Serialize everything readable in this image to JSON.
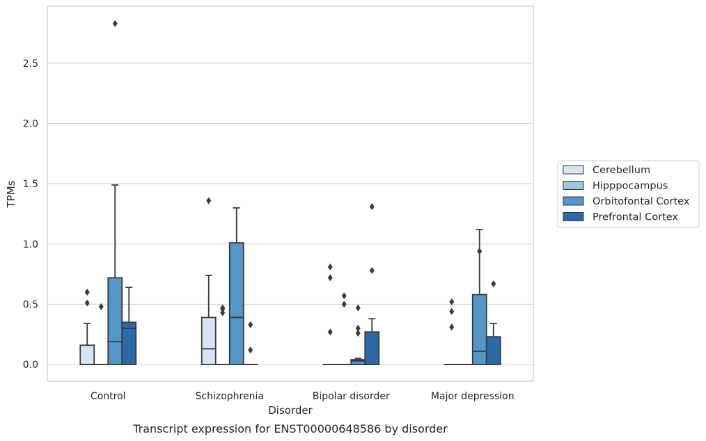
{
  "chart_data": {
    "type": "box",
    "caption": "Transcript expression for ENST00000648586 by disorder",
    "xlabel": "Disorder",
    "ylabel": "TPMs",
    "ylim": [
      -0.14,
      2.98
    ],
    "yticks": [
      "0.0",
      "0.5",
      "1.0",
      "1.5",
      "2.0",
      "2.5"
    ],
    "grid": "horizontal",
    "legend_placement": "right",
    "categories": [
      "Control",
      "Schizophrenia",
      "Bipolar disorder",
      "Major depression"
    ],
    "series": [
      {
        "name": "Cerebellum",
        "color": "#d5e3f2",
        "boxes": [
          {
            "q1": 0.0,
            "median": 0.0,
            "q3": 0.16,
            "whislo": 0.0,
            "whishi": 0.34,
            "fliers": [
              0.51,
              0.6
            ]
          },
          {
            "q1": 0.0,
            "median": 0.13,
            "q3": 0.39,
            "whislo": 0.0,
            "whishi": 0.74,
            "fliers": [
              1.36
            ]
          },
          {
            "q1": 0.0,
            "median": 0.0,
            "q3": 0.0,
            "whislo": 0.0,
            "whishi": 0.0,
            "fliers": [
              0.27,
              0.72,
              0.81
            ]
          },
          {
            "q1": 0.0,
            "median": 0.0,
            "q3": 0.0,
            "whislo": 0.0,
            "whishi": 0.0,
            "fliers": [
              0.31,
              0.44,
              0.52
            ]
          }
        ]
      },
      {
        "name": "Hipppocampus",
        "color": "#9ac7e0",
        "boxes": [
          {
            "q1": 0.0,
            "median": 0.0,
            "q3": 0.0,
            "whislo": 0.0,
            "whishi": 0.0,
            "fliers": [
              0.48
            ]
          },
          {
            "q1": 0.0,
            "median": 0.0,
            "q3": 0.0,
            "whislo": 0.0,
            "whishi": 0.0,
            "fliers": [
              0.43,
              0.46,
              0.47
            ]
          },
          {
            "q1": 0.0,
            "median": 0.0,
            "q3": 0.0,
            "whislo": 0.0,
            "whishi": 0.0,
            "fliers": [
              0.5,
              0.57
            ]
          },
          {
            "q1": 0.0,
            "median": 0.0,
            "q3": 0.0,
            "whislo": 0.0,
            "whishi": 0.0,
            "fliers": []
          }
        ]
      },
      {
        "name": "Orbitofontal Cortex",
        "color": "#5497c6",
        "boxes": [
          {
            "q1": 0.0,
            "median": 0.19,
            "q3": 0.72,
            "whislo": 0.0,
            "whishi": 1.49,
            "fliers": [
              2.83
            ]
          },
          {
            "q1": 0.0,
            "median": 0.39,
            "q3": 1.01,
            "whislo": 0.0,
            "whishi": 1.3,
            "fliers": []
          },
          {
            "q1": 0.0,
            "median": 0.03,
            "q3": 0.04,
            "whislo": 0.0,
            "whishi": 0.05,
            "fliers": [
              0.26,
              0.3,
              0.47
            ]
          },
          {
            "q1": 0.0,
            "median": 0.11,
            "q3": 0.58,
            "whislo": 0.0,
            "whishi": 1.12,
            "fliers": [
              0.94
            ]
          }
        ]
      },
      {
        "name": "Prefrontal Cortex",
        "color": "#2a6aa8",
        "boxes": [
          {
            "q1": 0.0,
            "median": 0.3,
            "q3": 0.35,
            "whislo": 0.0,
            "whishi": 0.64,
            "fliers": []
          },
          {
            "q1": 0.0,
            "median": 0.0,
            "q3": 0.0,
            "whislo": 0.0,
            "whishi": 0.0,
            "fliers": [
              0.12,
              0.33
            ]
          },
          {
            "q1": 0.0,
            "median": 0.0,
            "q3": 0.27,
            "whislo": 0.0,
            "whishi": 0.38,
            "fliers": [
              0.78,
              1.31
            ]
          },
          {
            "q1": 0.0,
            "median": 0.0,
            "q3": 0.23,
            "whislo": 0.0,
            "whishi": 0.34,
            "fliers": [
              0.67
            ]
          }
        ]
      }
    ]
  }
}
